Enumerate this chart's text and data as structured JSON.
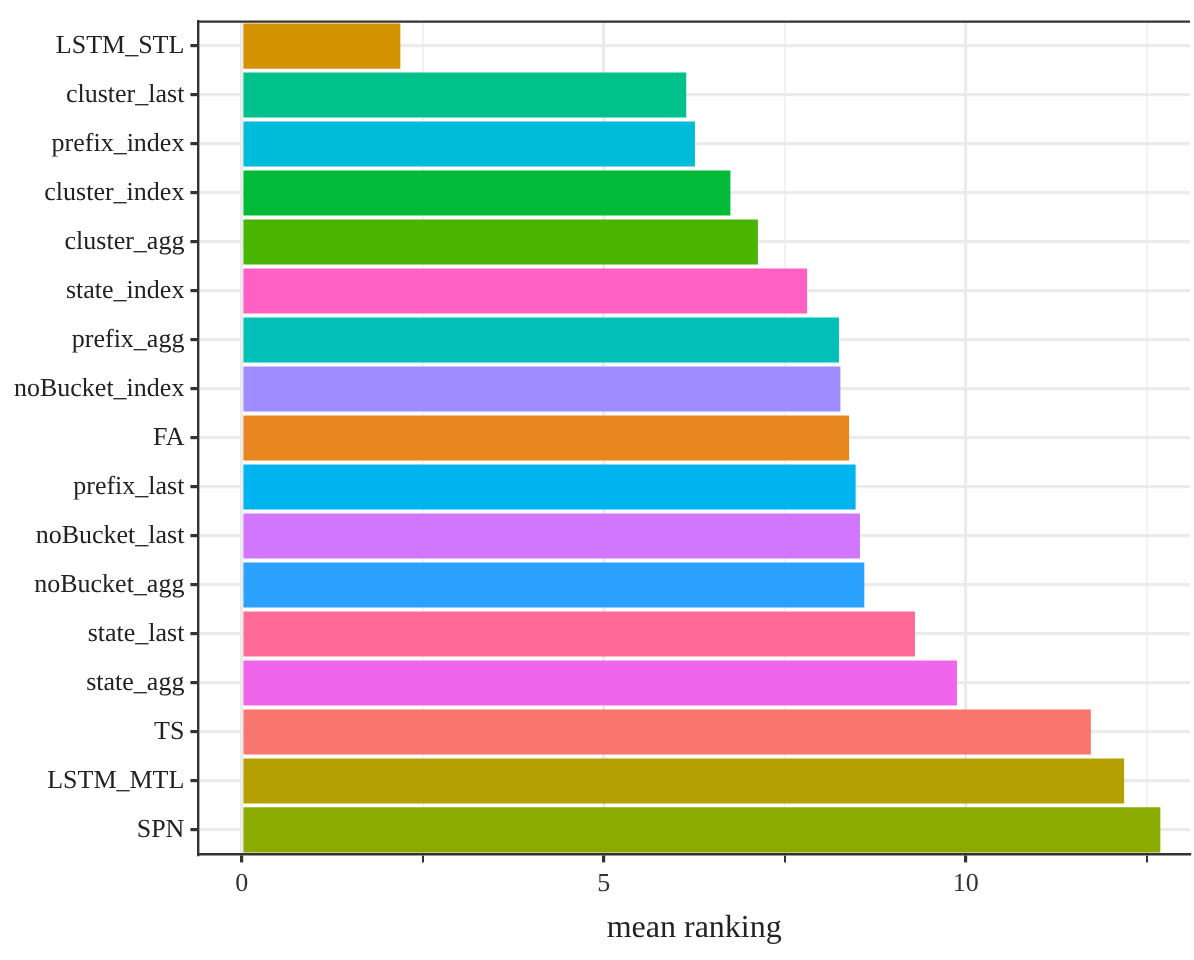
{
  "chart_data": {
    "type": "bar",
    "orientation": "horizontal",
    "xlabel": "mean ranking",
    "categories": [
      "LSTM_STL",
      "cluster_last",
      "prefix_index",
      "cluster_index",
      "cluster_agg",
      "state_index",
      "prefix_agg",
      "noBucket_index",
      "FA",
      "prefix_last",
      "noBucket_last",
      "noBucket_agg",
      "state_last",
      "state_agg",
      "TS",
      "LSTM_MTL",
      "SPN"
    ],
    "values": [
      2.19,
      6.14,
      6.26,
      6.75,
      7.13,
      7.81,
      8.25,
      8.27,
      8.39,
      8.48,
      8.54,
      8.6,
      9.3,
      9.88,
      11.73,
      12.19,
      12.69
    ],
    "colors": [
      "#d39200",
      "#00c08b",
      "#00bcd8",
      "#00ba38",
      "#49b500",
      "#ff61c3",
      "#00c0b8",
      "#9f8cff",
      "#e8861f",
      "#00b4f0",
      "#d376ff",
      "#2aa0ff",
      "#ff6a98",
      "#f066ea",
      "#f8766d",
      "#b4a000",
      "#8cab00"
    ],
    "xlim": [
      -0.6,
      13.1
    ],
    "xticks": [
      0,
      {
        "value": 2.5,
        "label": null
      },
      5,
      {
        "value": 7.5,
        "label": null
      },
      10,
      {
        "value": 12.5,
        "label": null
      }
    ],
    "grid": true,
    "legend": false
  }
}
